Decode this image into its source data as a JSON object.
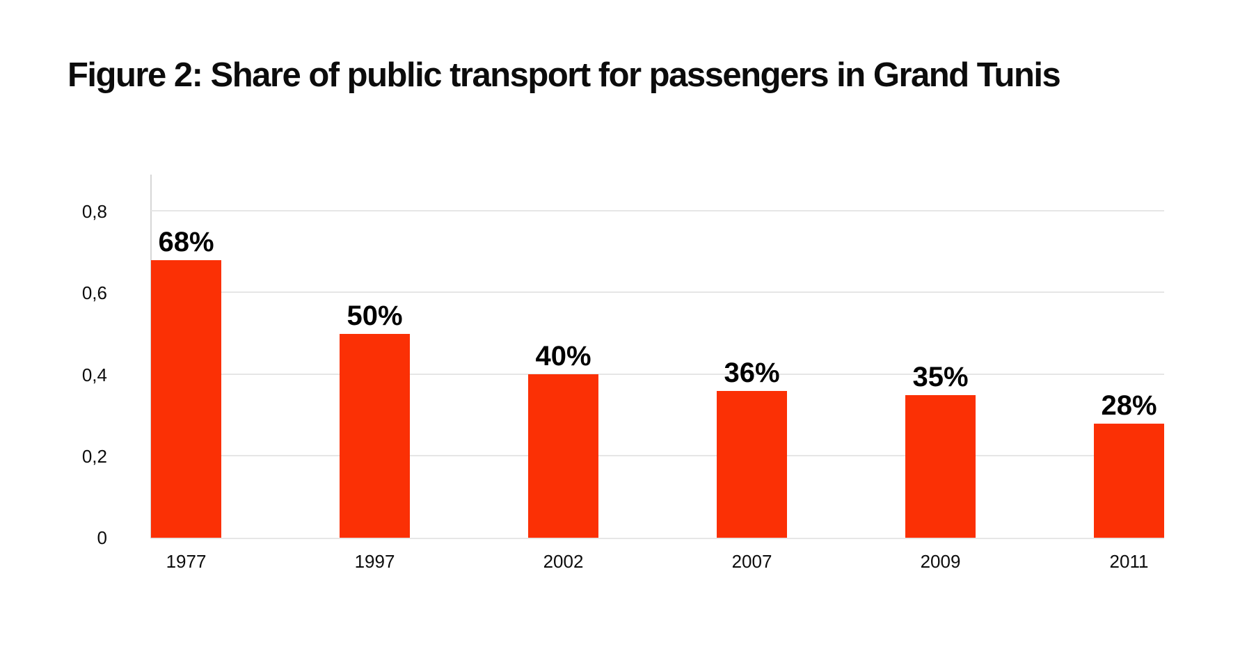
{
  "title": "Figure 2: Share of public transport for passengers in Grand Tunis",
  "chart_data": {
    "type": "bar",
    "title": "Figure 2: Share of public transport for passengers in Grand Tunis",
    "categories": [
      "1977",
      "1997",
      "2002",
      "2007",
      "2009",
      "2011"
    ],
    "values": [
      0.68,
      0.5,
      0.4,
      0.36,
      0.35,
      0.28
    ],
    "bar_labels": [
      "68%",
      "50%",
      "40%",
      "36%",
      "35%",
      "28%"
    ],
    "xlabel": "",
    "ylabel": "",
    "ylim": [
      0,
      0.89
    ],
    "y_ticks": [
      {
        "label": "0,8",
        "value": 0.8
      },
      {
        "label": "0,6",
        "value": 0.6
      },
      {
        "label": "0,4",
        "value": 0.4
      },
      {
        "label": "0,2",
        "value": 0.2
      },
      {
        "label": "0",
        "value": 0.0
      }
    ],
    "grid": true,
    "legend": false,
    "decimal_separator": ",",
    "colors": {
      "bar": "#fb3005",
      "gridline": "#e6e6e6",
      "axis_line": "#d6d6d6",
      "text": "#0c0c0c"
    }
  }
}
